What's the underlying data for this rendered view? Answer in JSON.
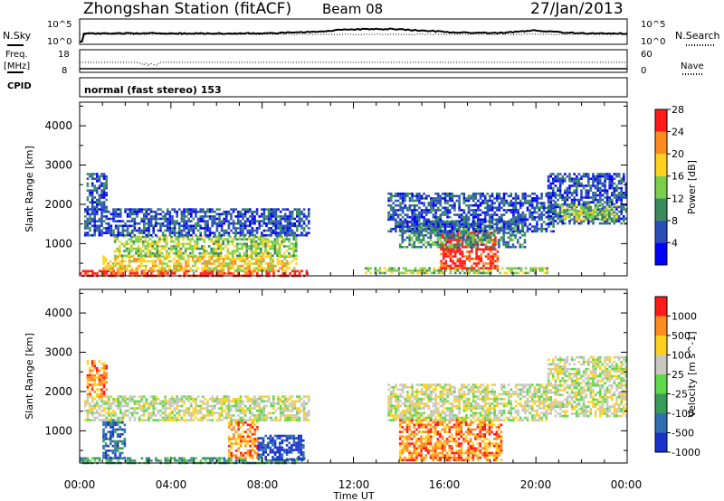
{
  "header": {
    "station": "Zhongshan Station (fitACF)",
    "beam": "Beam 08",
    "date": "27/Jan/2013"
  },
  "noise_panel": {
    "left_label": "N.Sky",
    "right_label": "N.Search",
    "ticks_left": [
      "10^5",
      "10^0"
    ],
    "ticks_right": [
      "10^5",
      "10^0"
    ]
  },
  "freq_panel": {
    "left_label_1": "Freq.",
    "left_label_2": "[MHz]",
    "right_label": "Nave",
    "ticks_left": [
      "18",
      "8"
    ],
    "ticks_right": [
      "60",
      "0"
    ]
  },
  "cpid_panel": {
    "label": "CPID",
    "text": "normal (fast stereo) 153"
  },
  "axes": {
    "ylabel": "Slant Range [km]",
    "xlabel": "Time UT",
    "x_ticks": [
      "00:00",
      "04:00",
      "08:00",
      "12:00",
      "16:00",
      "20:00",
      "00:00"
    ],
    "y_ticks": [
      "1000",
      "2000",
      "3000",
      "4000"
    ]
  },
  "chart_data": [
    {
      "type": "heatmap",
      "title": "",
      "xlabel": "Time UT",
      "ylabel": "Slant Range [km]",
      "xlim": [
        0,
        24
      ],
      "ylim": [
        180,
        4600
      ],
      "colorbar": {
        "label": "Power [dB]",
        "ticks": [
          "4",
          "8",
          "12",
          "16",
          "20",
          "24",
          "28"
        ],
        "colors": [
          "#0000ff",
          "#2a4fb8",
          "#3a8a5c",
          "#7ad04a",
          "#ffd21e",
          "#ff8c1e",
          "#ff1a1a"
        ]
      },
      "regions": [
        {
          "t0": 0.0,
          "t1": 10.0,
          "r0": 200,
          "r1": 330,
          "level": 6
        },
        {
          "t0": 1.0,
          "t1": 9.5,
          "r0": 330,
          "r1": 700,
          "level": 4
        },
        {
          "t0": 1.5,
          "t1": 9.5,
          "r0": 700,
          "r1": 1200,
          "level": 3
        },
        {
          "t0": 0.2,
          "t1": 10.0,
          "r0": 1200,
          "r1": 1900,
          "level": 1
        },
        {
          "t0": 0.3,
          "t1": 1.2,
          "r0": 1900,
          "r1": 2800,
          "level": 1
        },
        {
          "t0": 12.5,
          "t1": 20.5,
          "r0": 250,
          "r1": 400,
          "level": 3
        },
        {
          "t0": 15.8,
          "t1": 18.3,
          "r0": 400,
          "r1": 1300,
          "level": 6
        },
        {
          "t0": 14.0,
          "t1": 19.5,
          "r0": 900,
          "r1": 1600,
          "level": 2
        },
        {
          "t0": 13.5,
          "t1": 20.8,
          "r0": 1300,
          "r1": 2300,
          "level": 1
        },
        {
          "t0": 20.5,
          "t1": 24.0,
          "r0": 1500,
          "r1": 2800,
          "level": 1
        },
        {
          "t0": 21.0,
          "t1": 23.5,
          "r0": 1600,
          "r1": 2000,
          "level": 3
        }
      ]
    },
    {
      "type": "heatmap",
      "title": "",
      "xlabel": "Time UT",
      "ylabel": "Slant Range [km]",
      "xlim": [
        0,
        24
      ],
      "ylim": [
        180,
        4600
      ],
      "colorbar": {
        "label": "Velocity [m s^-1]",
        "ticks": [
          "1000",
          "500",
          "100",
          "25",
          "-25",
          "-100",
          "-500",
          "-1000"
        ],
        "colors": [
          "#1a33cc",
          "#2f6fb0",
          "#3a9a5a",
          "#5fd84a",
          "#c8c8c0",
          "#ffd21e",
          "#ff8c1e",
          "#ff1a1a"
        ]
      },
      "regions": [
        {
          "t0": 0.0,
          "t1": 10.0,
          "r0": 200,
          "r1": 330,
          "level": 2
        },
        {
          "t0": 1.0,
          "t1": 2.0,
          "r0": 330,
          "r1": 1300,
          "level": 1
        },
        {
          "t0": 6.5,
          "t1": 7.8,
          "r0": 300,
          "r1": 1300,
          "level": 6
        },
        {
          "t0": 7.8,
          "t1": 9.8,
          "r0": 300,
          "r1": 900,
          "level": 0
        },
        {
          "t0": 0.2,
          "t1": 10.0,
          "r0": 1300,
          "r1": 1900,
          "level": 4
        },
        {
          "t0": 0.3,
          "t1": 1.2,
          "r0": 1900,
          "r1": 2800,
          "level": 6
        },
        {
          "t0": 14.0,
          "t1": 18.5,
          "r0": 250,
          "r1": 1300,
          "level": 6
        },
        {
          "t0": 13.5,
          "t1": 20.5,
          "r0": 1300,
          "r1": 2200,
          "level": 4
        },
        {
          "t0": 20.5,
          "t1": 24.0,
          "r0": 1400,
          "r1": 2900,
          "level": 4
        }
      ]
    }
  ]
}
